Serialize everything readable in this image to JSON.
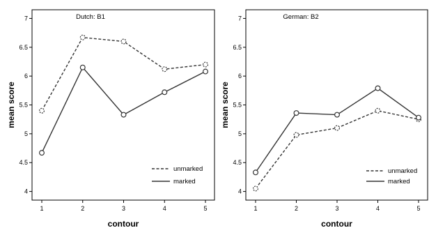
{
  "chart_data": [
    {
      "type": "line",
      "title": "Dutch: B1",
      "xlabel": "contour",
      "ylabel": "mean score",
      "categories": [
        "1",
        "2",
        "3",
        "4",
        "5"
      ],
      "ylim": [
        3.85,
        7.15
      ],
      "yticks": [
        "4",
        "4.5",
        "5",
        "5.5",
        "6",
        "6.5",
        "7"
      ],
      "legend_position": "bottom-right",
      "grid": false,
      "series": [
        {
          "name": "unmarked",
          "style": "dashed",
          "color": "#333333",
          "values": [
            5.4,
            6.67,
            6.6,
            6.12,
            6.2
          ]
        },
        {
          "name": "marked",
          "style": "solid",
          "color": "#333333",
          "values": [
            4.67,
            6.15,
            5.33,
            5.72,
            6.08
          ]
        }
      ]
    },
    {
      "type": "line",
      "title": "German: B2",
      "xlabel": "contour",
      "ylabel": "mean score",
      "categories": [
        "1",
        "2",
        "3",
        "4",
        "5"
      ],
      "ylim": [
        3.85,
        7.15
      ],
      "yticks": [
        "4",
        "4.5",
        "5",
        "5.5",
        "6",
        "6.5",
        "7"
      ],
      "legend_position": "bottom-right",
      "grid": false,
      "series": [
        {
          "name": "unmarked",
          "style": "dashed",
          "color": "#333333",
          "values": [
            4.05,
            4.98,
            5.1,
            5.4,
            5.25
          ]
        },
        {
          "name": "marked",
          "style": "solid",
          "color": "#333333",
          "values": [
            4.33,
            5.36,
            5.33,
            5.79,
            5.28
          ]
        }
      ]
    }
  ]
}
